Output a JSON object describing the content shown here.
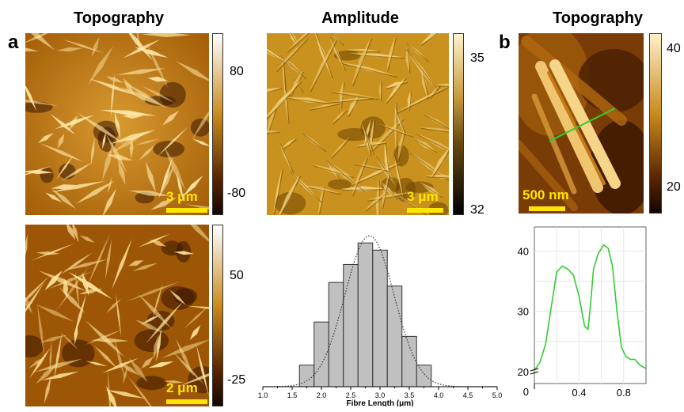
{
  "panels": {
    "a_label": "a",
    "b_label": "b"
  },
  "titles": {
    "topo_left": "Topography",
    "amplitude": "Amplitude",
    "topo_right": "Topography"
  },
  "images": {
    "topo_top": {
      "scale_label": "3 μm",
      "colorbar_ticks": [
        "80",
        "-80"
      ]
    },
    "amplitude": {
      "scale_label": "3 μm",
      "colorbar_ticks": [
        "35",
        "32"
      ]
    },
    "topo_bottom": {
      "scale_label": "2 μm",
      "colorbar_ticks": [
        "50",
        "-25"
      ]
    },
    "topo_b": {
      "scale_label": "500 nm",
      "colorbar_ticks": [
        "40",
        "20"
      ],
      "line_marker": "1"
    }
  },
  "colors": {
    "afm_dark": "#2a0f00",
    "afm_mid": "#b8720a",
    "afm_light": "#fff0c0",
    "scalebar": "#ffe600",
    "profile_line": "#33cc33",
    "hist_fill": "#c0c0c0"
  },
  "chart_data": [
    {
      "type": "bar",
      "xlabel": "Fibre Length (μm)",
      "ylabel": "",
      "x_ticks": [
        "1.0",
        "1.5",
        "2.0",
        "2.5",
        "3.0",
        "3.5",
        "4.0",
        "4.5",
        "5.0"
      ],
      "xlim": [
        1.0,
        5.0
      ],
      "bin_width": 0.25,
      "bin_centers": [
        1.75,
        2.0,
        2.25,
        2.5,
        2.75,
        3.0,
        3.25,
        3.5,
        3.75
      ],
      "values": [
        6,
        18,
        29,
        34,
        40,
        38,
        28,
        14,
        6
      ],
      "fit": {
        "type": "gaussian",
        "mean": 2.82,
        "sigma": 0.42,
        "peak": 42,
        "style": "dotted"
      },
      "ylim": [
        0,
        44
      ]
    },
    {
      "type": "line",
      "x_ticks": [
        "0.4",
        "0.8"
      ],
      "y_ticks": [
        "20",
        "30",
        "40"
      ],
      "extra_y_tick": "0",
      "xlim": [
        0,
        1.0
      ],
      "ylim": [
        18,
        44
      ],
      "series": [
        {
          "x": [
            0.0,
            0.05,
            0.1,
            0.15,
            0.2,
            0.25,
            0.3,
            0.35,
            0.4,
            0.45,
            0.48,
            0.5,
            0.53,
            0.57,
            0.62,
            0.66,
            0.7,
            0.74,
            0.78,
            0.82,
            0.86,
            0.9,
            0.95,
            1.0
          ],
          "y": [
            20.2,
            21.5,
            24.5,
            30.5,
            36.5,
            37.5,
            37.0,
            36.0,
            32.5,
            27.5,
            27.0,
            30.5,
            37.0,
            39.5,
            41.0,
            40.5,
            37.5,
            30.0,
            24.0,
            22.5,
            22.0,
            22.0,
            21.0,
            20.5
          ]
        }
      ]
    }
  ]
}
